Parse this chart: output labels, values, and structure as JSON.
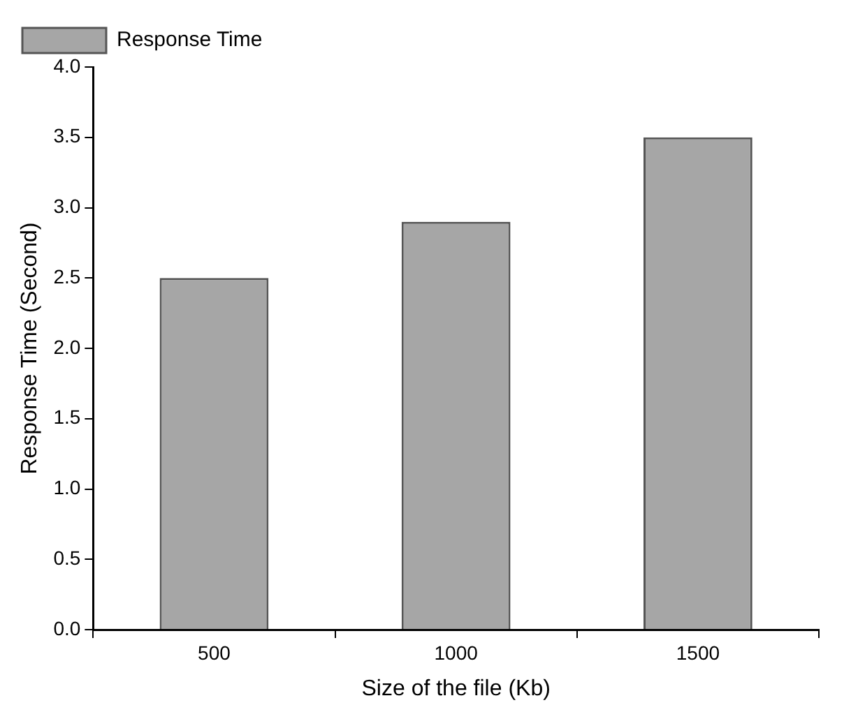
{
  "chart_data": {
    "type": "bar",
    "xlabel": "Size of the file (Kb)",
    "ylabel": "Response Time (Second)",
    "categories": [
      "500",
      "1000",
      "1500"
    ],
    "series": [
      {
        "name": "Response Time",
        "color": "#a6a6a6",
        "values": [
          2.5,
          2.9,
          3.5
        ]
      }
    ],
    "ylim": [
      0,
      4
    ],
    "yticks": [
      {
        "value": 0,
        "label": "0.0"
      },
      {
        "value": 0.5,
        "label": "0.5"
      },
      {
        "value": 1,
        "label": "1.0"
      },
      {
        "value": 1.5,
        "label": "1.5"
      },
      {
        "value": 2,
        "label": "2.0"
      },
      {
        "value": 2.5,
        "label": "2.5"
      },
      {
        "value": 3,
        "label": "3.0"
      },
      {
        "value": 3.5,
        "label": "3.5"
      },
      {
        "value": 4,
        "label": "4.0"
      }
    ],
    "grid": false,
    "legend": "top left"
  }
}
